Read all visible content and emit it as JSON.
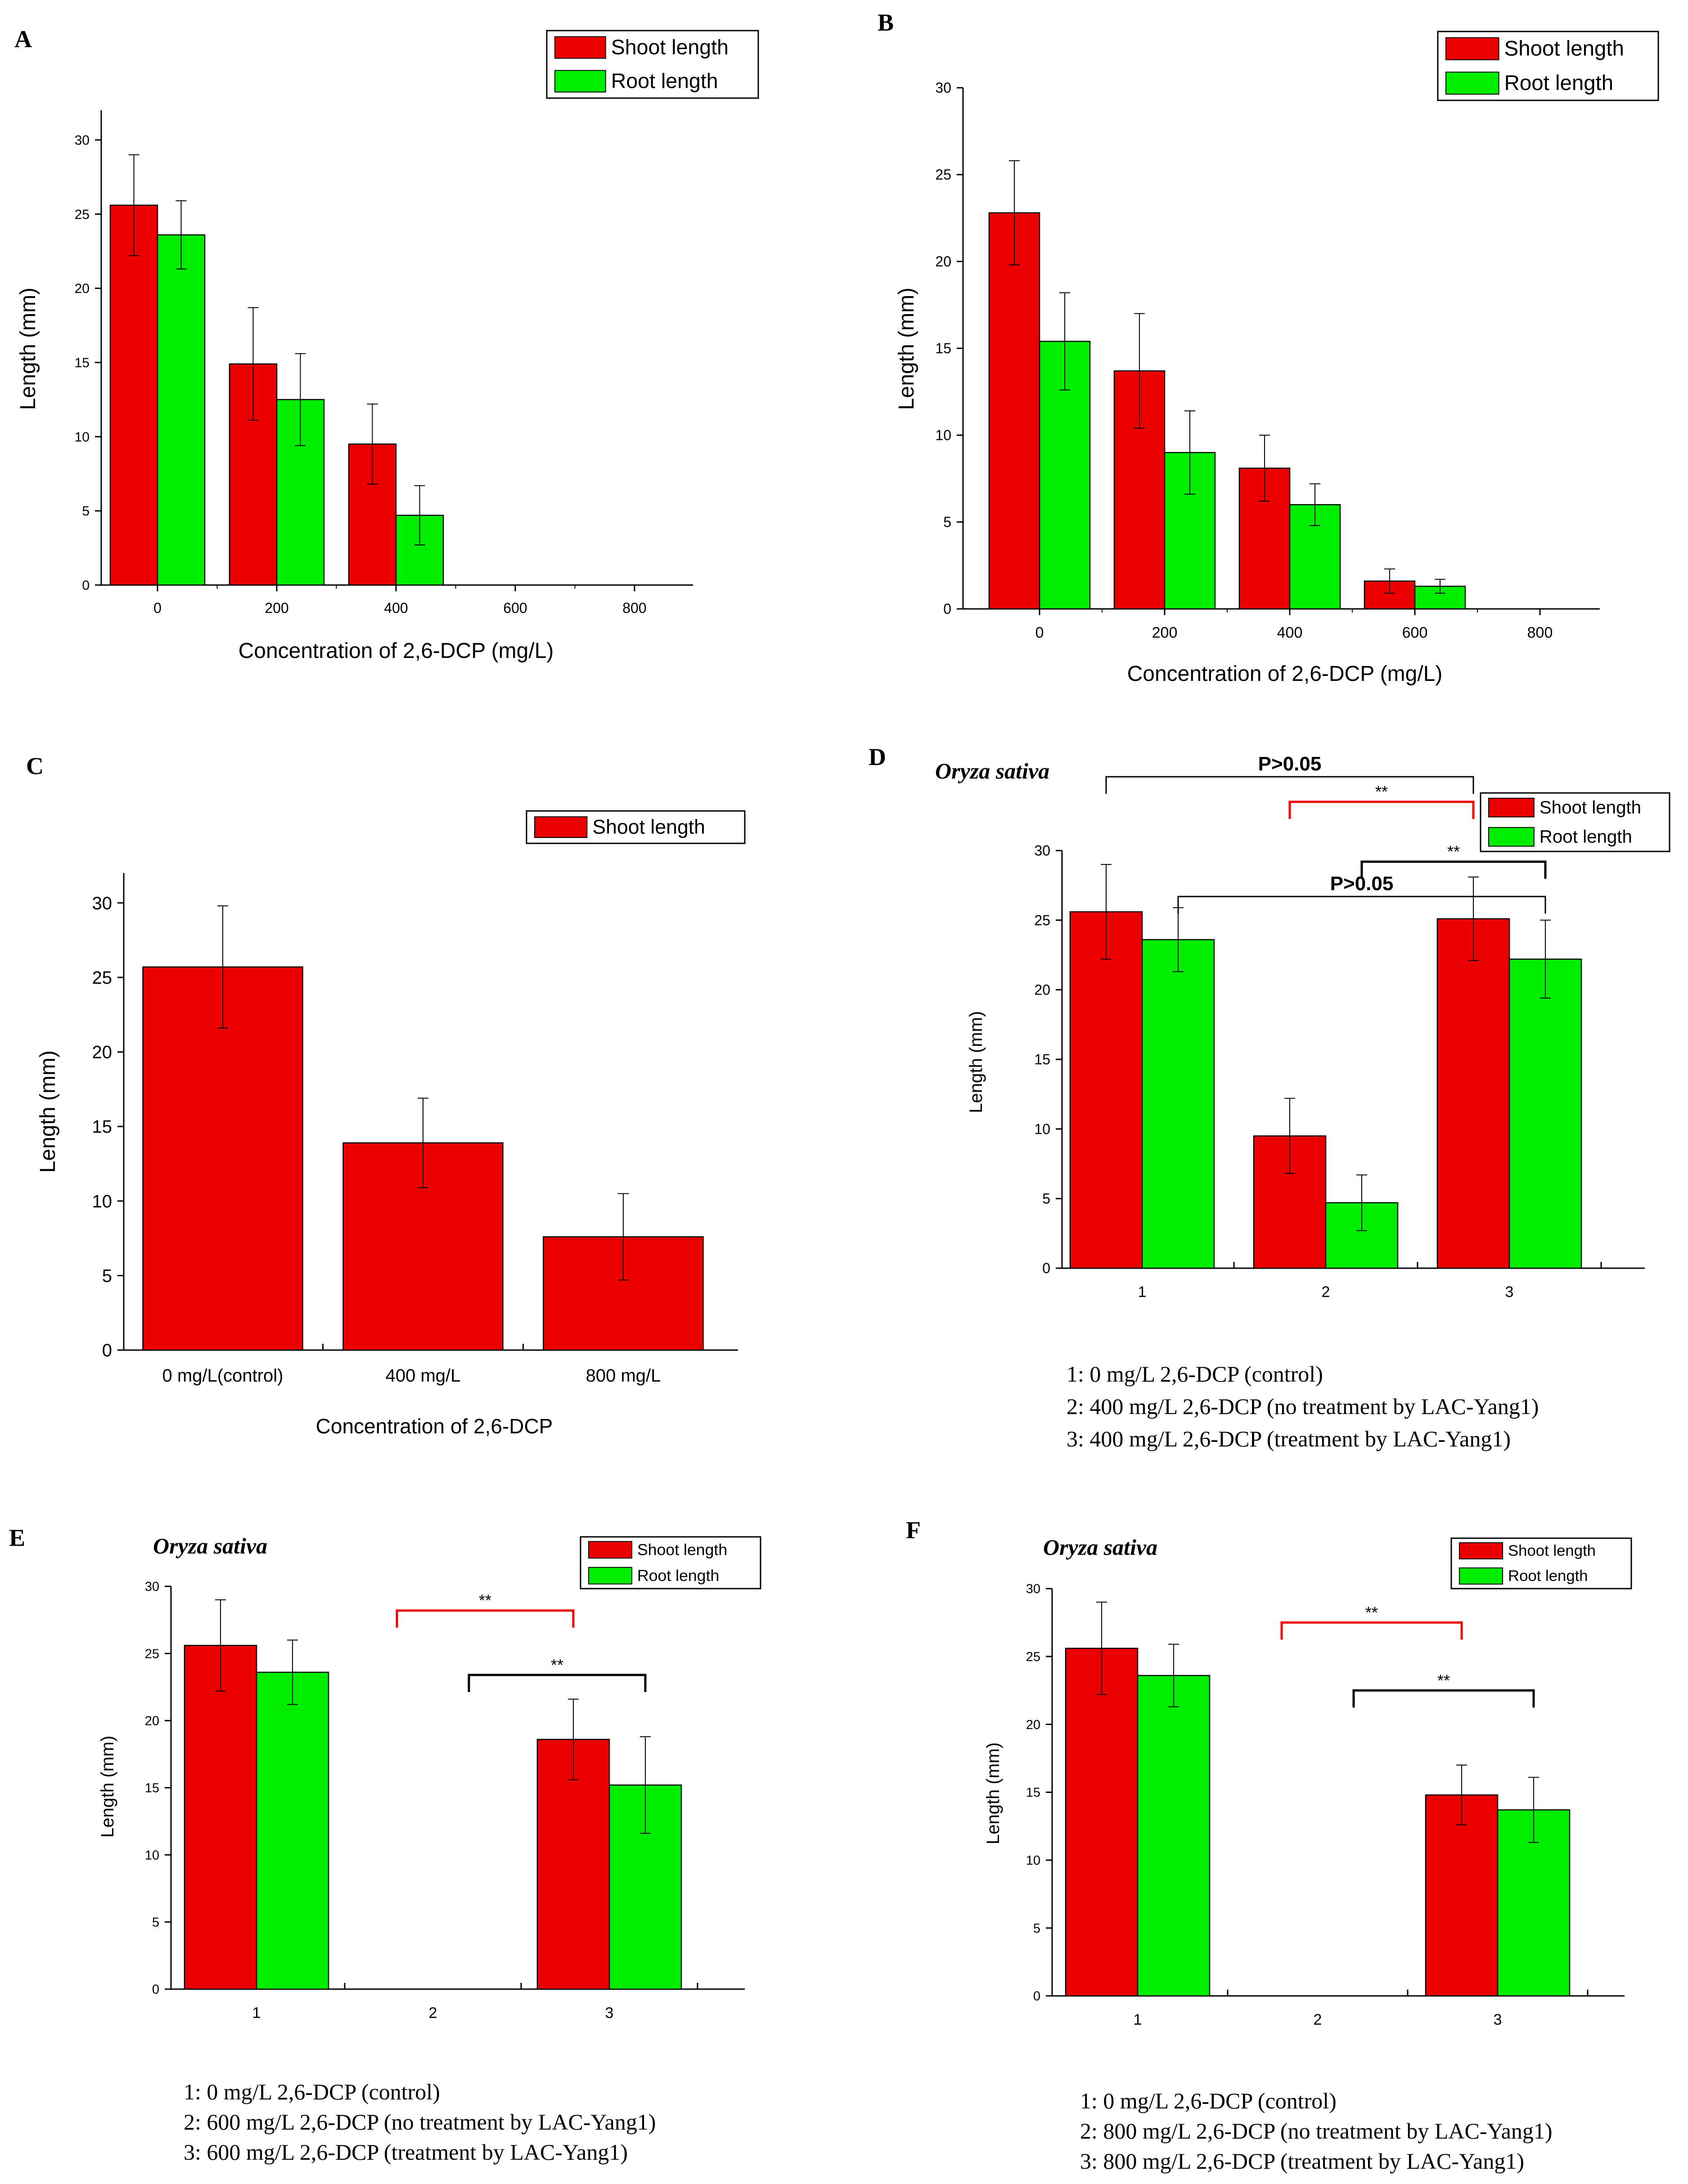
{
  "colors": {
    "shoot": "#ee0000",
    "root": "#00ee00",
    "red_bracket": "#ee0000",
    "black_bracket": "#000000"
  },
  "chart_data": [
    {
      "id": "A",
      "panel_label": "A",
      "type": "bar",
      "title": "",
      "xlabel": "Concentration of 2,6-DCP (mg/L)",
      "ylabel": "Length (mm)",
      "categories": [
        "0",
        "200",
        "400",
        "600",
        "800"
      ],
      "series": [
        {
          "name": "Shoot length",
          "color": "shoot",
          "values": [
            25.6,
            14.9,
            9.5,
            0,
            0
          ],
          "errors": [
            3.4,
            3.8,
            2.7,
            0,
            0
          ]
        },
        {
          "name": "Root length",
          "color": "root",
          "values": [
            23.6,
            12.5,
            4.7,
            0,
            0
          ],
          "errors": [
            2.3,
            3.1,
            2.0,
            0,
            0
          ]
        }
      ],
      "ylim": [
        0,
        32
      ],
      "yticks": [
        0,
        5,
        10,
        15,
        20,
        25,
        30
      ],
      "legend": "top-right"
    },
    {
      "id": "B",
      "panel_label": "B",
      "type": "bar",
      "title": "",
      "xlabel": "Concentration of 2,6-DCP (mg/L)",
      "ylabel": "Length (mm)",
      "categories": [
        "0",
        "200",
        "400",
        "600",
        "800"
      ],
      "series": [
        {
          "name": "Shoot length",
          "color": "shoot",
          "values": [
            22.8,
            13.7,
            8.1,
            1.6,
            0
          ],
          "errors": [
            3.0,
            3.3,
            1.9,
            0.7,
            0
          ]
        },
        {
          "name": "Root length",
          "color": "root",
          "values": [
            15.4,
            9.0,
            6.0,
            1.3,
            0
          ],
          "errors": [
            2.8,
            2.4,
            1.2,
            0.4,
            0
          ]
        }
      ],
      "ylim": [
        0,
        30
      ],
      "yticks": [
        0,
        5,
        10,
        15,
        20,
        25,
        30
      ],
      "legend": "top-right"
    },
    {
      "id": "C",
      "panel_label": "C",
      "type": "bar",
      "title": "",
      "xlabel": "Concentration of 2,6-DCP",
      "ylabel": "Length (mm)",
      "categories": [
        "0 mg/L(control)",
        "400 mg/L",
        "800 mg/L"
      ],
      "series": [
        {
          "name": "Shoot length",
          "color": "shoot",
          "values": [
            25.7,
            13.9,
            7.6
          ],
          "errors": [
            4.1,
            3.0,
            2.9
          ]
        }
      ],
      "ylim": [
        0,
        32
      ],
      "yticks": [
        0,
        5,
        10,
        15,
        20,
        25,
        30
      ],
      "legend": "top-right"
    },
    {
      "id": "D",
      "panel_label": "D",
      "species": "Oryza sativa",
      "type": "bar",
      "title": "",
      "xlabel": "",
      "ylabel": "Length (mm)",
      "categories": [
        "1",
        "2",
        "3"
      ],
      "series": [
        {
          "name": "Shoot length",
          "color": "shoot",
          "values": [
            25.6,
            9.5,
            25.1
          ],
          "errors": [
            3.4,
            2.7,
            3.0
          ]
        },
        {
          "name": "Root length",
          "color": "root",
          "values": [
            23.6,
            4.7,
            22.2
          ],
          "errors": [
            2.3,
            2.0,
            2.8
          ]
        }
      ],
      "ylim": [
        0,
        30
      ],
      "yticks": [
        0,
        5,
        10,
        15,
        20,
        25,
        30
      ],
      "legend": "top-right",
      "annotations": [
        {
          "label": "P>0.05",
          "style": "bold",
          "color": "black_bracket",
          "from_cat": 0,
          "from_series": 0,
          "to_cat": 2,
          "to_series": 0,
          "level": 35.3
        },
        {
          "label": "**",
          "style": "normal",
          "color": "red_bracket",
          "from_cat": 1,
          "from_series": 0,
          "to_cat": 2,
          "to_series": 0,
          "level": 33.5
        },
        {
          "label": "**",
          "style": "normal",
          "color": "black_bracket",
          "from_cat": 1,
          "from_series": 1,
          "to_cat": 2,
          "to_series": 1,
          "level": 29.2
        },
        {
          "label": "P>0.05",
          "style": "bold",
          "color": "black_bracket",
          "from_cat": 0,
          "from_series": 1,
          "to_cat": 2,
          "to_series": 1,
          "level": 26.7
        }
      ],
      "footnotes": [
        "1:  0 mg/L 2,6-DCP (control)",
        "2:  400 mg/L 2,6-DCP (no treatment by LAC-Yang1)",
        "3:  400 mg/L 2,6-DCP (treatment by LAC-Yang1)"
      ]
    },
    {
      "id": "E",
      "panel_label": "E",
      "species": "Oryza sativa",
      "type": "bar",
      "title": "",
      "xlabel": "",
      "ylabel": "Length (mm)",
      "categories": [
        "1",
        "2",
        "3"
      ],
      "series": [
        {
          "name": "Shoot length",
          "color": "shoot",
          "values": [
            25.6,
            0,
            18.6
          ],
          "errors": [
            3.4,
            0,
            3.0
          ]
        },
        {
          "name": "Root length",
          "color": "root",
          "values": [
            23.6,
            0,
            15.2
          ],
          "errors": [
            2.4,
            0,
            3.6
          ]
        }
      ],
      "ylim": [
        0,
        30
      ],
      "yticks": [
        0,
        5,
        10,
        15,
        20,
        25,
        30
      ],
      "legend": "top-right",
      "annotations": [
        {
          "label": "**",
          "style": "normal",
          "color": "red_bracket",
          "from_cat": 1,
          "from_series": 0,
          "to_cat": 2,
          "to_series": 0,
          "level": 28.2
        },
        {
          "label": "**",
          "style": "normal",
          "color": "black_bracket",
          "from_cat": 1,
          "from_series": 1,
          "to_cat": 2,
          "to_series": 1,
          "level": 23.4
        }
      ],
      "footnotes": [
        "1:  0 mg/L 2,6-DCP (control)",
        "2:  600 mg/L 2,6-DCP (no treatment by LAC-Yang1)",
        "3:  600 mg/L 2,6-DCP (treatment by LAC-Yang1)"
      ]
    },
    {
      "id": "F",
      "panel_label": "F",
      "species": "Oryza sativa",
      "type": "bar",
      "title": "",
      "xlabel": "",
      "ylabel": "Length (mm)",
      "categories": [
        "1",
        "2",
        "3"
      ],
      "series": [
        {
          "name": "Shoot length",
          "color": "shoot",
          "values": [
            25.6,
            0,
            14.8
          ],
          "errors": [
            3.4,
            0,
            2.2
          ]
        },
        {
          "name": "Root length",
          "color": "root",
          "values": [
            23.6,
            0,
            13.7
          ],
          "errors": [
            2.3,
            0,
            2.4
          ]
        }
      ],
      "ylim": [
        0,
        30
      ],
      "yticks": [
        0,
        5,
        10,
        15,
        20,
        25,
        30
      ],
      "legend": "top-right",
      "annotations": [
        {
          "label": "**",
          "style": "normal",
          "color": "red_bracket",
          "from_cat": 1,
          "from_series": 0,
          "to_cat": 2,
          "to_series": 0,
          "level": 27.5
        },
        {
          "label": "**",
          "style": "normal",
          "color": "black_bracket",
          "from_cat": 1,
          "from_series": 1,
          "to_cat": 2,
          "to_series": 1,
          "level": 22.5
        }
      ],
      "footnotes": [
        "1:  0 mg/L 2,6-DCP (control)",
        "2:  800 mg/L 2,6-DCP (no treatment by LAC-Yang1)",
        "3:  800 mg/L 2,6-DCP (treatment by LAC-Yang1)"
      ]
    }
  ]
}
